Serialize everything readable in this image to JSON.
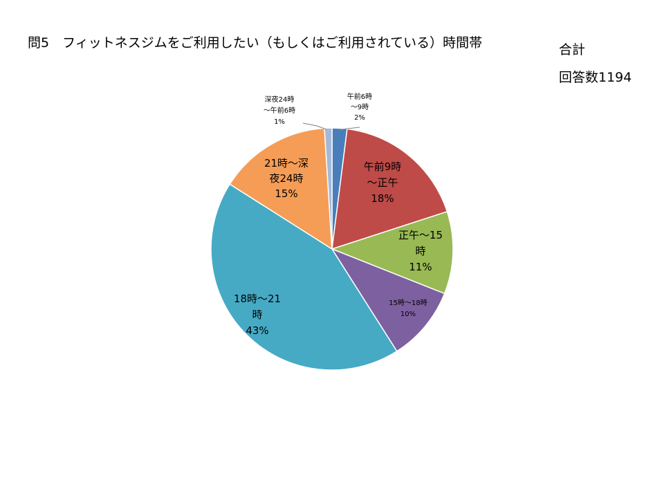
{
  "title": "問5　フィットネスジムをご利用したい（もしくはご利用されている）時間帯",
  "side": {
    "total_label": "合計",
    "count_label": "回答数1194"
  },
  "chart_data": {
    "type": "pie",
    "title": "問5　フィットネスジムをご利用したい（もしくはご利用されている）時間帯",
    "start": "top",
    "direction": "clockwise",
    "slices": [
      {
        "label": "午前6時～9時",
        "value": 2,
        "percent_text": "2%",
        "color": "#4a7ebb",
        "label_lines": [
          "午前6時",
          "～9時",
          "2%"
        ]
      },
      {
        "label": "午前9時～正午",
        "value": 18,
        "percent_text": "18%",
        "color": "#be4b48",
        "label_lines": [
          "午前9時",
          "～正午",
          "18%"
        ]
      },
      {
        "label": "正午～15時",
        "value": 11,
        "percent_text": "11%",
        "color": "#98b954",
        "label_lines": [
          "正午～15",
          "時",
          "11%"
        ]
      },
      {
        "label": "15時～18時",
        "value": 10,
        "percent_text": "10%",
        "color": "#7d60a0",
        "label_lines": [
          "15時～18時",
          "10%"
        ]
      },
      {
        "label": "18時～21時",
        "value": 43,
        "percent_text": "43%",
        "color": "#46aac5",
        "label_lines": [
          "18時～21",
          "時",
          "43%"
        ]
      },
      {
        "label": "21時～深夜24時",
        "value": 15,
        "percent_text": "15%",
        "color": "#f59d56",
        "label_lines": [
          "21時～深",
          "夜24時",
          "15%"
        ]
      },
      {
        "label": "深夜24時～午前6時",
        "value": 1,
        "percent_text": "1%",
        "color": "#a5b8d8",
        "label_lines": [
          "深夜24時",
          "～午前6時",
          "1%"
        ]
      }
    ]
  }
}
